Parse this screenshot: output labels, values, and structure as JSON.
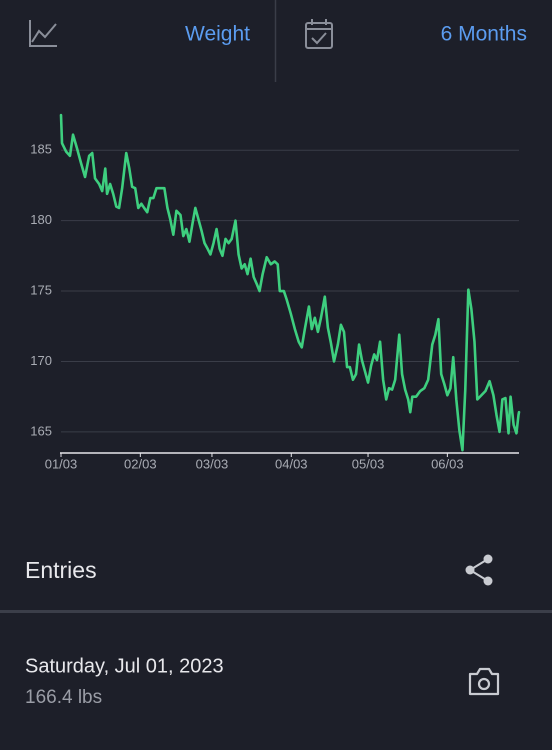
{
  "header": {
    "metric": "Weight",
    "period": "6 Months"
  },
  "chart_data": {
    "type": "line",
    "x": [
      0,
      0.4,
      2.0,
      3.5,
      4.7,
      6.3,
      7.8,
      9.4,
      11.0,
      12.2,
      13.3,
      14.9,
      16.1,
      17.3,
      18.0,
      19.2,
      20.4,
      21.6,
      22.7,
      23.9,
      25.5,
      26.7,
      27.8,
      29.0,
      30.2,
      31.4,
      32.5,
      33.7,
      34.9,
      36.1,
      37.3,
      38.8,
      40.4,
      41.6,
      42.7,
      43.9,
      45.1,
      46.7,
      47.8,
      49.0,
      50.2,
      51.4,
      52.5,
      53.7,
      54.9,
      56.1,
      57.3,
      58.4,
      59.6,
      60.8,
      62.0,
      63.1,
      64.3,
      65.5,
      66.7,
      68.2,
      69.4,
      70.6,
      71.8,
      72.9,
      74.1,
      75.3,
      76.5,
      77.6,
      78.8,
      80.4,
      82.0,
      83.5,
      84.7,
      85.5,
      87.1,
      88.2,
      89.8,
      91.4,
      92.9,
      94.1,
      95.3,
      96.9,
      98.0,
      99.2,
      100.4,
      101.6,
      103.1,
      104.3,
      105.5,
      106.7,
      108.2,
      109.4,
      110.6,
      111.8,
      112.9,
      114.1,
      115.3,
      116.5,
      117.6,
      118.8,
      120.0,
      121.2,
      122.4,
      123.5,
      124.7,
      125.9,
      127.1,
      128.2,
      129.4,
      130.6,
      132.2,
      133.3,
      134.5,
      135.7,
      136.5,
      137.3,
      138.8,
      140.4,
      142.0,
      143.5,
      145.1,
      146.3,
      147.5,
      148.6,
      149.8,
      151.0,
      152.2,
      153.3,
      154.5,
      155.7,
      156.9,
      158.0,
      159.2,
      160.4,
      161.6,
      162.7,
      164.3,
      165.9,
      167.5,
      169.0,
      170.2,
      171.4,
      172.5,
      173.7,
      174.9,
      175.7,
      176.9,
      178.0,
      178.8,
      179
    ],
    "series": [
      {
        "color": "#3ecf7f",
        "values": [
          187.5,
          185.5,
          184.9,
          184.6,
          186.1,
          185.1,
          184.1,
          183.1,
          184.6,
          184.8,
          183,
          182.6,
          182.1,
          183.7,
          181.9,
          182.6,
          181.9,
          181,
          180.9,
          182.3,
          184.8,
          183.7,
          182.4,
          182.3,
          180.9,
          181.2,
          180.9,
          180.6,
          181.6,
          181.6,
          182.3,
          182.3,
          182.3,
          180.9,
          180.1,
          179,
          180.7,
          180.4,
          178.9,
          179.4,
          178.5,
          179.8,
          180.9,
          180.1,
          179.3,
          178.4,
          178,
          177.6,
          178.4,
          179.4,
          178,
          177.5,
          178.7,
          178.4,
          178.7,
          180,
          177.6,
          176.6,
          176.9,
          176.2,
          177.3,
          176,
          175.5,
          175,
          176.2,
          177.4,
          176.9,
          177.1,
          176.9,
          175,
          175,
          174.4,
          173.4,
          172.3,
          171.4,
          171,
          172.3,
          173.9,
          172.3,
          173.1,
          172.1,
          173.1,
          174.6,
          172.4,
          171.3,
          170,
          171.2,
          172.6,
          172.1,
          169.6,
          169.6,
          168.7,
          169.1,
          171.2,
          170.1,
          169.3,
          168.5,
          169.7,
          170.5,
          170.1,
          171.4,
          168.7,
          167.3,
          168.1,
          168,
          168.7,
          171.9,
          169.1,
          168,
          167.3,
          166.4,
          167.5,
          167.5,
          167.9,
          168.1,
          168.7,
          171.2,
          171.9,
          173,
          169.1,
          168.4,
          167.6,
          168.1,
          170.3,
          167.3,
          165.1,
          163.7,
          168,
          175.1,
          173.7,
          171.4,
          167.3,
          167.6,
          167.9,
          168.6,
          167.6,
          166.2,
          165,
          167.3,
          167.4,
          164.9,
          167.5,
          165.5,
          164.9,
          166.2,
          166.4
        ]
      }
    ],
    "xlim": [
      0,
      179
    ],
    "xticks": [
      {
        "value": 0,
        "label": "01/03"
      },
      {
        "value": 31,
        "label": "02/03"
      },
      {
        "value": 59,
        "label": "03/03"
      },
      {
        "value": 90,
        "label": "04/03"
      },
      {
        "value": 120,
        "label": "05/03"
      },
      {
        "value": 151,
        "label": "06/03"
      }
    ],
    "ylim": [
      163.5,
      187.5
    ],
    "yticks": [
      165,
      170,
      175,
      180,
      185
    ],
    "grid": true
  },
  "entries": {
    "title": "Entries",
    "items": [
      {
        "date": "Saturday, Jul 01, 2023",
        "weight": "166.4 lbs"
      }
    ]
  }
}
